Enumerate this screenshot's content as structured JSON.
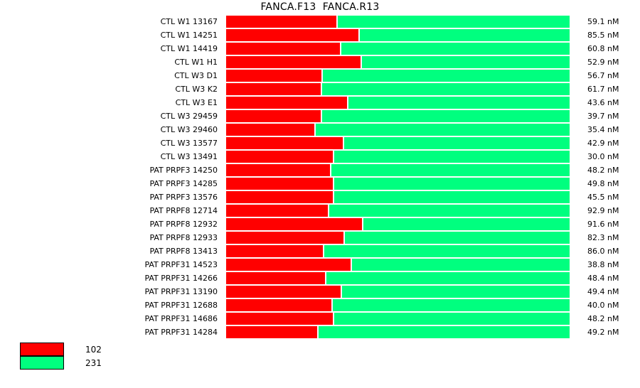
{
  "title": "FANCA.F13  FANCA.R13",
  "colors": {
    "series_102": "#ff0000",
    "series_231": "#00ff7f",
    "background": "#ffffff",
    "text": "#000000"
  },
  "legend": {
    "items": [
      {
        "label": "102",
        "color": "#ff0000"
      },
      {
        "label": "231",
        "color": "#00ff7f"
      }
    ]
  },
  "chart_data": {
    "type": "bar",
    "subtype": "horizontal-stacked-100percent",
    "title": "FANCA.F13  FANCA.R13",
    "legend_position": "bottom-left",
    "grid": false,
    "unit": "nM",
    "series": [
      {
        "name": "102",
        "color": "#ff0000"
      },
      {
        "name": "231",
        "color": "#00ff7f"
      }
    ],
    "rows": [
      {
        "label": "CTL W1 13167",
        "fraction_102": 0.321,
        "fraction_231": 0.679,
        "value": "59.1 nM"
      },
      {
        "label": "CTL W1 14251",
        "fraction_102": 0.385,
        "fraction_231": 0.615,
        "value": "85.5 nM"
      },
      {
        "label": "CTL W1 14419",
        "fraction_102": 0.331,
        "fraction_231": 0.669,
        "value": "60.8 nM"
      },
      {
        "label": "CTL W1 H1",
        "fraction_102": 0.391,
        "fraction_231": 0.609,
        "value": "52.9 nM"
      },
      {
        "label": "CTL W3 D1",
        "fraction_102": 0.277,
        "fraction_231": 0.723,
        "value": "56.7 nM"
      },
      {
        "label": "CTL W3 K2",
        "fraction_102": 0.275,
        "fraction_231": 0.725,
        "value": "61.7 nM"
      },
      {
        "label": "CTL W3 E1",
        "fraction_102": 0.352,
        "fraction_231": 0.648,
        "value": "43.6 nM"
      },
      {
        "label": "CTL W3 29459",
        "fraction_102": 0.275,
        "fraction_231": 0.725,
        "value": "39.7 nM"
      },
      {
        "label": "CTL W3 29460",
        "fraction_102": 0.257,
        "fraction_231": 0.743,
        "value": "35.4 nM"
      },
      {
        "label": "CTL W3 13577",
        "fraction_102": 0.34,
        "fraction_231": 0.66,
        "value": "42.9 nM"
      },
      {
        "label": "CTL W3 13491",
        "fraction_102": 0.311,
        "fraction_231": 0.689,
        "value": "30.0 nM"
      },
      {
        "label": "PAT PRPF3 14250",
        "fraction_102": 0.302,
        "fraction_231": 0.698,
        "value": "48.2 nM"
      },
      {
        "label": "PAT PRPF3 14285",
        "fraction_102": 0.311,
        "fraction_231": 0.689,
        "value": "49.8 nM"
      },
      {
        "label": "PAT PRPF3 13576",
        "fraction_102": 0.311,
        "fraction_231": 0.689,
        "value": "45.5 nM"
      },
      {
        "label": "PAT PRPF8 12714",
        "fraction_102": 0.296,
        "fraction_231": 0.704,
        "value": "92.9 nM"
      },
      {
        "label": "PAT PRPF8 12932",
        "fraction_102": 0.395,
        "fraction_231": 0.605,
        "value": "91.6 nM"
      },
      {
        "label": "PAT PRPF8 12933",
        "fraction_102": 0.342,
        "fraction_231": 0.658,
        "value": "82.3 nM"
      },
      {
        "label": "PAT PRPF8 13413",
        "fraction_102": 0.282,
        "fraction_231": 0.718,
        "value": "86.0 nM"
      },
      {
        "label": "PAT PRPF31 14523",
        "fraction_102": 0.362,
        "fraction_231": 0.638,
        "value": "38.8 nM"
      },
      {
        "label": "PAT PRPF31 14266",
        "fraction_102": 0.288,
        "fraction_231": 0.712,
        "value": "48.4 nM"
      },
      {
        "label": "PAT PRPF31 13190",
        "fraction_102": 0.333,
        "fraction_231": 0.667,
        "value": "49.4 nM"
      },
      {
        "label": "PAT PRPF31 12688",
        "fraction_102": 0.306,
        "fraction_231": 0.694,
        "value": "40.0 nM"
      },
      {
        "label": "PAT PRPF31 14686",
        "fraction_102": 0.311,
        "fraction_231": 0.689,
        "value": "48.2 nM"
      },
      {
        "label": "PAT PRPF31 14284",
        "fraction_102": 0.265,
        "fraction_231": 0.735,
        "value": "49.2 nM"
      }
    ]
  }
}
